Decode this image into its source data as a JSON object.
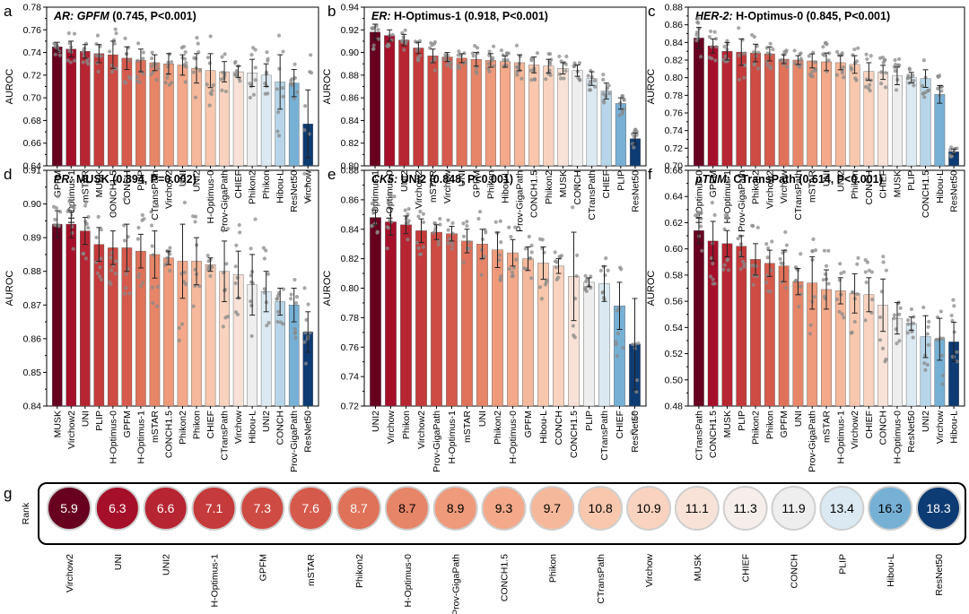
{
  "figure": {
    "panels_top_letters": [
      "a",
      "b",
      "c"
    ],
    "panels_mid_letters": [
      "d",
      "e",
      "f"
    ],
    "rank_letter": "g"
  },
  "chart_data": [
    {
      "type": "bar",
      "letter": "a",
      "title_task": "AR:",
      "title_model": "GPFM",
      "title_stats": "(0.745, P<0.001)",
      "model_italic": true,
      "ylabel": "AUROC",
      "ylim": [
        0.64,
        0.78
      ],
      "yticks": [
        "0.64",
        "0.66",
        "0.68",
        "0.70",
        "0.72",
        "0.74",
        "0.76",
        "0.78"
      ],
      "categories": [
        "GPFM",
        "H-Optimus-1",
        "mSTAR",
        "MUSK",
        "CONCH1.5",
        "CONCH",
        "PLIP",
        "CTransPath",
        "Virchow2",
        "UNI",
        "UNI2",
        "H-Optimus-0",
        "Prov-GigaPath",
        "CHIEF",
        "Phikon2",
        "Phikon",
        "Hibou-L",
        "ResNet50",
        "Virchow"
      ],
      "values": [
        0.745,
        0.743,
        0.741,
        0.739,
        0.738,
        0.735,
        0.733,
        0.731,
        0.73,
        0.729,
        0.726,
        0.724,
        0.723,
        0.723,
        0.722,
        0.72,
        0.714,
        0.713,
        0.677
      ],
      "errors": [
        0.004,
        0.007,
        0.006,
        0.008,
        0.012,
        0.01,
        0.01,
        0.007,
        0.009,
        0.009,
        0.013,
        0.015,
        0.009,
        0.005,
        0.012,
        0.01,
        0.024,
        0.012,
        0.03
      ],
      "colors": [
        "#67001f",
        "#a50f2a",
        "#b72532",
        "#c53a3a",
        "#cd4b43",
        "#d65a4c",
        "#df7259",
        "#e78568",
        "#ee9a7b",
        "#f3a98a",
        "#f6b89a",
        "#f8c7ad",
        "#f9d3bf",
        "#f8e2d7",
        "#eeeeee",
        "#dbe9f2",
        "#b7d5e8",
        "#77b0d5",
        "#0d3b73"
      ]
    },
    {
      "type": "bar",
      "letter": "b",
      "title_task": "ER:",
      "title_model": "H-Optimus-1",
      "title_stats": "(0.918, P<0.001)",
      "model_italic": false,
      "ylabel": "AUROC",
      "ylim": [
        0.8,
        0.94
      ],
      "yticks": [
        "0.80",
        "0.82",
        "0.84",
        "0.86",
        "0.88",
        "0.90",
        "0.92",
        "0.94"
      ],
      "categories": [
        "H-Optimus-1",
        "H-Optimus-0",
        "UNI2",
        "Virchow2",
        "mSTAR",
        "Virchow",
        "UNI",
        "GPFM",
        "Phikon",
        "Hibou-L",
        "Prov-GigaPath",
        "CONCH1.5",
        "Phikon2",
        "MUSK",
        "CONCH",
        "CTransPath",
        "CHIEF",
        "PLIP",
        "ResNet50"
      ],
      "values": [
        0.918,
        0.915,
        0.911,
        0.904,
        0.897,
        0.896,
        0.895,
        0.894,
        0.893,
        0.892,
        0.891,
        0.889,
        0.888,
        0.886,
        0.884,
        0.877,
        0.866,
        0.855,
        0.824
      ],
      "errors": [
        0.007,
        0.005,
        0.005,
        0.005,
        0.006,
        0.004,
        0.004,
        0.006,
        0.006,
        0.005,
        0.007,
        0.007,
        0.006,
        0.005,
        0.005,
        0.006,
        0.007,
        0.005,
        0.005
      ],
      "colors": [
        "#67001f",
        "#a50f2a",
        "#b72532",
        "#c53a3a",
        "#cd4b43",
        "#d65a4c",
        "#df7259",
        "#e78568",
        "#ee9a7b",
        "#f3a98a",
        "#f6b89a",
        "#f8c7ad",
        "#f9d3bf",
        "#f8e2d7",
        "#eeeeee",
        "#dbe9f2",
        "#b7d5e8",
        "#77b0d5",
        "#0d3b73"
      ]
    },
    {
      "type": "bar",
      "letter": "c",
      "title_task": "HER-2:",
      "title_model": "H-Optimus-0",
      "title_stats": "(0.845, P<0.001)",
      "model_italic": false,
      "ylabel": "AUROC",
      "ylim": [
        0.7,
        0.88
      ],
      "yticks": [
        "0.70",
        "0.72",
        "0.74",
        "0.76",
        "0.78",
        "0.80",
        "0.82",
        "0.84",
        "0.86",
        "0.88"
      ],
      "categories": [
        "H-Optimus-0",
        "GPFM",
        "H-Optimus-1",
        "Prov-GigaPath",
        "Phikon2",
        "Virchow2",
        "Virchow",
        "CTransPath",
        "mSTAR",
        "UNI",
        "UNI2",
        "Phikon",
        "CONCH",
        "CHIEF",
        "MUSK",
        "PLIP",
        "CONCH1.5",
        "Hibou-L",
        "ResNet50"
      ],
      "values": [
        0.845,
        0.836,
        0.83,
        0.829,
        0.828,
        0.827,
        0.821,
        0.82,
        0.819,
        0.818,
        0.817,
        0.815,
        0.807,
        0.806,
        0.802,
        0.8,
        0.799,
        0.781,
        0.716
      ],
      "errors": [
        0.012,
        0.008,
        0.01,
        0.015,
        0.01,
        0.008,
        0.005,
        0.005,
        0.008,
        0.01,
        0.008,
        0.01,
        0.01,
        0.008,
        0.01,
        0.006,
        0.01,
        0.01,
        0.003
      ],
      "colors": [
        "#67001f",
        "#a50f2a",
        "#b72532",
        "#c53a3a",
        "#cd4b43",
        "#d65a4c",
        "#df7259",
        "#e78568",
        "#ee9a7b",
        "#f3a98a",
        "#f6b89a",
        "#f8c7ad",
        "#f9d3bf",
        "#f8e2d7",
        "#eeeeee",
        "#dbe9f2",
        "#b7d5e8",
        "#77b0d5",
        "#0d3b73"
      ]
    },
    {
      "type": "bar",
      "letter": "d",
      "title_task": "PR:",
      "title_model": "MUSK",
      "title_stats": "(0.894, P=0.002)",
      "model_italic": false,
      "ylabel": "AUROC",
      "ylim": [
        0.84,
        0.91
      ],
      "yticks": [
        "0.84",
        "0.85",
        "0.86",
        "0.87",
        "0.88",
        "0.89",
        "0.90",
        "0.91"
      ],
      "categories": [
        "MUSK",
        "Virchow2",
        "UNI",
        "PLIP",
        "H-Optimus-0",
        "GPFM",
        "H-Optimus-1",
        "mSTAR",
        "CONCH1.5",
        "Phikon2",
        "Phikon",
        "CHIEF",
        "CTransPath",
        "Virchow",
        "Hibou-L",
        "UNI2",
        "CONCH",
        "Prov-GigaPath",
        "ResNet50"
      ],
      "values": [
        0.894,
        0.894,
        0.892,
        0.888,
        0.887,
        0.887,
        0.886,
        0.885,
        0.884,
        0.883,
        0.883,
        0.882,
        0.88,
        0.879,
        0.876,
        0.874,
        0.871,
        0.87,
        0.862
      ],
      "errors": [
        0.004,
        0.004,
        0.004,
        0.005,
        0.005,
        0.007,
        0.005,
        0.007,
        0.002,
        0.011,
        0.007,
        0.002,
        0.009,
        0.007,
        0.009,
        0.006,
        0.004,
        0.005,
        0.006
      ],
      "colors": [
        "#67001f",
        "#a50f2a",
        "#b72532",
        "#c53a3a",
        "#cd4b43",
        "#d65a4c",
        "#df7259",
        "#e78568",
        "#ee9a7b",
        "#f3a98a",
        "#f6b89a",
        "#f8c7ad",
        "#f9d3bf",
        "#f8e2d7",
        "#eeeeee",
        "#dbe9f2",
        "#b7d5e8",
        "#77b0d5",
        "#0d3b73"
      ]
    },
    {
      "type": "bar",
      "letter": "e",
      "title_task": "CK5:",
      "title_model": "UNI2",
      "title_stats": "(0.848, P<0.001)",
      "model_italic": false,
      "ylabel": "AUROC",
      "ylim": [
        0.72,
        0.88
      ],
      "yticks": [
        "0.72",
        "0.74",
        "0.76",
        "0.78",
        "0.80",
        "0.82",
        "0.84",
        "0.86",
        "0.88"
      ],
      "categories": [
        "UNI2",
        "Virchow",
        "Phikon",
        "Virchow2",
        "Prov-GigaPath",
        "H-Optimus-1",
        "mSTAR",
        "UNI",
        "Phikon2",
        "H-Optimus-0",
        "GPFM",
        "Hibou-L",
        "CONCH",
        "CONCH1.5",
        "PLIP",
        "CTransPath",
        "CHIEF",
        "ResNet50"
      ],
      "values": [
        0.848,
        0.845,
        0.843,
        0.839,
        0.838,
        0.837,
        0.832,
        0.83,
        0.826,
        0.824,
        0.82,
        0.817,
        0.815,
        0.808,
        0.804,
        0.803,
        0.788,
        0.762
      ],
      "errors": [
        0.005,
        0.009,
        0.006,
        0.008,
        0.005,
        0.005,
        0.008,
        0.01,
        0.012,
        0.009,
        0.008,
        0.011,
        0.005,
        0.03,
        0.003,
        0.012,
        0.016,
        0.031
      ],
      "colors": [
        "#67001f",
        "#a50f2a",
        "#b72532",
        "#c53a3a",
        "#cd4b43",
        "#d65a4c",
        "#df7259",
        "#e78568",
        "#ee9a7b",
        "#f3a98a",
        "#f6b89a",
        "#f8c7ad",
        "#f9d3bf",
        "#f8e2d7",
        "#eeeeee",
        "#dbe9f2",
        "#77b0d5",
        "#0d3b73"
      ]
    },
    {
      "type": "bar",
      "letter": "f",
      "title_task": "pTNM:",
      "title_model": "CTransPath",
      "title_stats": "(0.614, P<0.001)",
      "model_italic": false,
      "ylabel": "AUROC",
      "ylim": [
        0.48,
        0.66
      ],
      "yticks": [
        "0.48",
        "0.50",
        "0.52",
        "0.54",
        "0.56",
        "0.58",
        "0.60",
        "0.62",
        "0.64",
        "0.66"
      ],
      "categories": [
        "CTransPath",
        "CONCH1.5",
        "MUSK",
        "PLIP",
        "Phikon2",
        "Phikon",
        "GPFM",
        "UNI",
        "Prov-GigaPath",
        "mSTAR",
        "H-Optimus-1",
        "Virchow2",
        "CHIEF",
        "CONCH",
        "H-Optimus-0",
        "ResNet50",
        "UNI2",
        "Virchow",
        "Hibou-L"
      ],
      "values": [
        0.614,
        0.606,
        0.604,
        0.602,
        0.592,
        0.589,
        0.587,
        0.575,
        0.574,
        0.569,
        0.568,
        0.566,
        0.565,
        0.557,
        0.547,
        0.543,
        0.533,
        0.531,
        0.529
      ],
      "errors": [
        0.01,
        0.015,
        0.01,
        0.008,
        0.012,
        0.01,
        0.012,
        0.01,
        0.02,
        0.015,
        0.01,
        0.015,
        0.013,
        0.02,
        0.012,
        0.005,
        0.016,
        0.016,
        0.015
      ],
      "colors": [
        "#67001f",
        "#a50f2a",
        "#b72532",
        "#c53a3a",
        "#cd4b43",
        "#d65a4c",
        "#df7259",
        "#e78568",
        "#ee9a7b",
        "#f3a98a",
        "#f6b89a",
        "#f8c7ad",
        "#f9d3bf",
        "#f8e2d7",
        "#eeeeee",
        "#dbe9f2",
        "#b7d5e8",
        "#77b0d5",
        "#0d3b73"
      ]
    },
    {
      "type": "table",
      "letter": "g",
      "ylabel": "Rank",
      "categories": [
        "Virchow2",
        "UNI",
        "UNI2",
        "H-Optimus-1",
        "GPFM",
        "mSTAR",
        "Phikon2",
        "H-Optimus-0",
        "Prov-GigaPath",
        "CONCH1.5",
        "Phikon",
        "CTransPath",
        "Virchow",
        "MUSK",
        "CHIEF",
        "CONCH",
        "PLIP",
        "Hibou-L",
        "ResNet50"
      ],
      "values": [
        "5.9",
        "6.3",
        "6.6",
        "7.1",
        "7.3",
        "7.6",
        "8.7",
        "8.7",
        "8.9",
        "9.3",
        "9.7",
        "10.8",
        "10.9",
        "11.1",
        "11.3",
        "11.9",
        "13.4",
        "16.3",
        "18.3"
      ],
      "colors": [
        "#67001f",
        "#a50f2a",
        "#b72532",
        "#c53a3a",
        "#cd4b43",
        "#d65a4c",
        "#df7259",
        "#e78568",
        "#ee9a7b",
        "#f3a98a",
        "#f6b89a",
        "#f8c7ad",
        "#f9d3bf",
        "#f8e2d7",
        "#f6eeea",
        "#eeeeee",
        "#dbe9f2",
        "#77b0d5",
        "#0d3b73"
      ],
      "text_colors": [
        "#ffffff",
        "#ffffff",
        "#ffffff",
        "#ffffff",
        "#ffffff",
        "#ffffff",
        "#ffffff",
        "#000000",
        "#000000",
        "#000000",
        "#000000",
        "#000000",
        "#000000",
        "#000000",
        "#000000",
        "#000000",
        "#000000",
        "#000000",
        "#ffffff"
      ]
    }
  ]
}
